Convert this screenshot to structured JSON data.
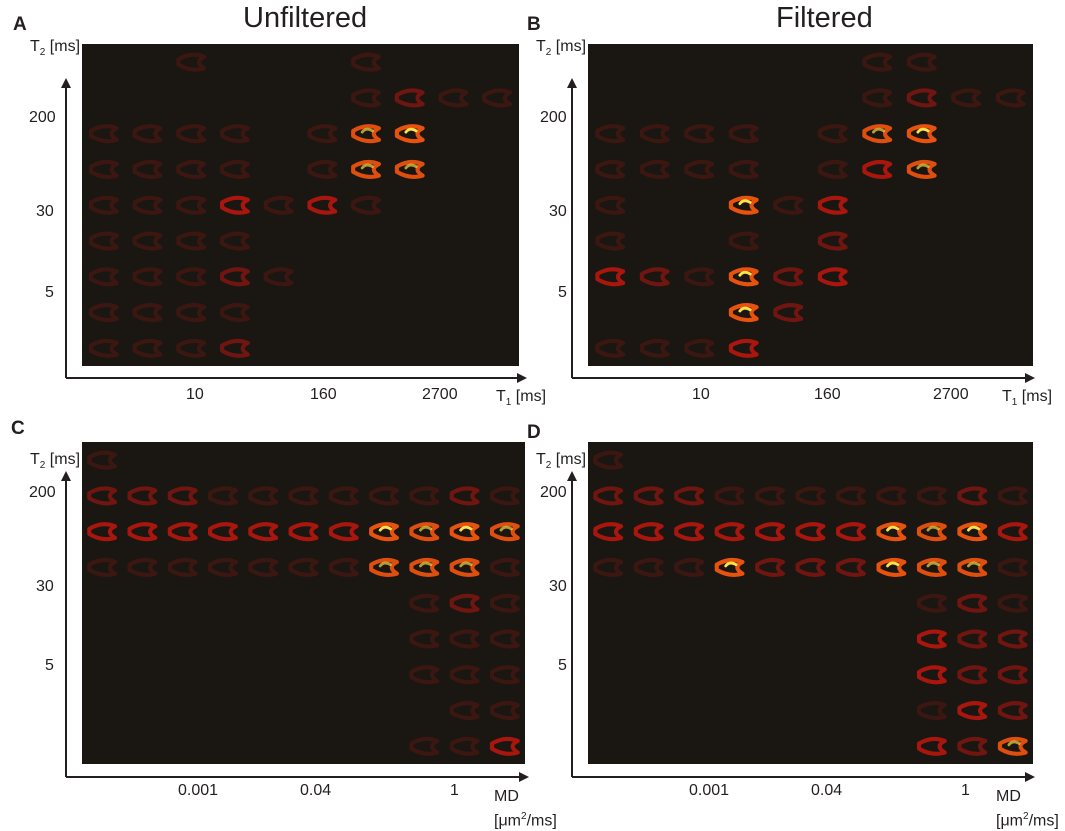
{
  "titles": {
    "left": "Unfiltered",
    "right": "Filtered"
  },
  "panels": {
    "A": {
      "letter": "A",
      "y_label": "T",
      "y_sub": "2",
      "y_unit": " [ms]",
      "x_label": "T",
      "x_sub": "1",
      "x_unit": " [ms]",
      "y_ticks": [
        "200",
        "30",
        "5"
      ],
      "x_ticks": [
        "10",
        "160",
        "2700"
      ]
    },
    "B": {
      "letter": "B",
      "y_label": "T",
      "y_sub": "2",
      "y_unit": " [ms]",
      "x_label": "T",
      "x_sub": "1",
      "x_unit": " [ms]",
      "y_ticks": [
        "200",
        "30",
        "5"
      ],
      "x_ticks": [
        "10",
        "160",
        "2700"
      ]
    },
    "C": {
      "letter": "C",
      "y_label": "T",
      "y_sub": "2",
      "y_unit": " [ms]",
      "x_label": "MD",
      "x_unit_pre": "[μm",
      "x_unit_sup": "2",
      "x_unit_post": "/ms]",
      "y_ticks": [
        "200",
        "30",
        "5"
      ],
      "x_ticks": [
        "0.001",
        "0.04",
        "1"
      ]
    },
    "D": {
      "letter": "D",
      "y_label": "T",
      "y_sub": "2",
      "y_unit": " [ms]",
      "x_label": "MD",
      "x_unit_pre": "[μm",
      "x_unit_sup": "2",
      "x_unit_post": "/ms]",
      "y_ticks": [
        "200",
        "30",
        "5"
      ],
      "x_ticks": [
        "0.001",
        "0.04",
        "1"
      ]
    }
  },
  "colors": {
    "background": "#1a1612",
    "dim": "#5a1a10",
    "red": "#b8160e",
    "orange": "#e8520f",
    "yellow": "#ffe14a",
    "axis": "#231f20"
  },
  "grids": {
    "A": [
      [
        0,
        0,
        1,
        0,
        0,
        0,
        1,
        0,
        0,
        0
      ],
      [
        0,
        0,
        0,
        0,
        0,
        0,
        1,
        2,
        1,
        1
      ],
      [
        1,
        1,
        1,
        1,
        0,
        1,
        4,
        5,
        0,
        0
      ],
      [
        1,
        1,
        1,
        1,
        0,
        1,
        4,
        4,
        0,
        0
      ],
      [
        1,
        1,
        1,
        3,
        1,
        3,
        1,
        0,
        0,
        0
      ],
      [
        1,
        1,
        1,
        1,
        0,
        0,
        0,
        0,
        0,
        0
      ],
      [
        1,
        1,
        1,
        2,
        1,
        0,
        0,
        0,
        0,
        0
      ],
      [
        1,
        1,
        1,
        1,
        0,
        0,
        0,
        0,
        0,
        0
      ],
      [
        1,
        1,
        1,
        2,
        0,
        0,
        0,
        0,
        0,
        0
      ]
    ],
    "B": [
      [
        0,
        0,
        0,
        0,
        0,
        0,
        1,
        1,
        0,
        0
      ],
      [
        0,
        0,
        0,
        0,
        0,
        0,
        1,
        2,
        1,
        1
      ],
      [
        1,
        1,
        1,
        1,
        0,
        1,
        4,
        5,
        0,
        0
      ],
      [
        1,
        1,
        1,
        1,
        0,
        1,
        3,
        4,
        0,
        0
      ],
      [
        1,
        0,
        0,
        5,
        1,
        3,
        0,
        0,
        0,
        0
      ],
      [
        1,
        0,
        0,
        1,
        0,
        2,
        0,
        0,
        0,
        0
      ],
      [
        3,
        2,
        1,
        5,
        2,
        3,
        0,
        0,
        0,
        0
      ],
      [
        0,
        0,
        0,
        5,
        2,
        0,
        0,
        0,
        0,
        0
      ],
      [
        1,
        1,
        1,
        3,
        0,
        0,
        0,
        0,
        0,
        0
      ]
    ],
    "C": [
      [
        1,
        0,
        0,
        0,
        0,
        0,
        0,
        0,
        0,
        0,
        0
      ],
      [
        2,
        2,
        2,
        1,
        1,
        1,
        1,
        1,
        1,
        2,
        1
      ],
      [
        3,
        3,
        3,
        3,
        3,
        3,
        3,
        5,
        4,
        5,
        4
      ],
      [
        1,
        1,
        1,
        1,
        1,
        1,
        1,
        4,
        4,
        4,
        1
      ],
      [
        0,
        0,
        0,
        0,
        0,
        0,
        0,
        0,
        1,
        2,
        1
      ],
      [
        0,
        0,
        0,
        0,
        0,
        0,
        0,
        0,
        1,
        1,
        1
      ],
      [
        0,
        0,
        0,
        0,
        0,
        0,
        0,
        0,
        1,
        1,
        1
      ],
      [
        0,
        0,
        0,
        0,
        0,
        0,
        0,
        0,
        0,
        1,
        1
      ],
      [
        0,
        0,
        0,
        0,
        0,
        0,
        0,
        0,
        1,
        1,
        3
      ]
    ],
    "D": [
      [
        1,
        0,
        0,
        0,
        0,
        0,
        0,
        0,
        0,
        0,
        0
      ],
      [
        2,
        2,
        2,
        1,
        1,
        1,
        1,
        1,
        1,
        2,
        1
      ],
      [
        3,
        3,
        3,
        3,
        3,
        3,
        3,
        5,
        4,
        5,
        3
      ],
      [
        1,
        1,
        1,
        5,
        2,
        2,
        2,
        5,
        4,
        4,
        1
      ],
      [
        0,
        0,
        0,
        0,
        0,
        0,
        0,
        0,
        1,
        2,
        1
      ],
      [
        0,
        0,
        0,
        0,
        0,
        0,
        0,
        0,
        3,
        2,
        2
      ],
      [
        0,
        0,
        0,
        0,
        0,
        0,
        0,
        0,
        3,
        2,
        2
      ],
      [
        0,
        0,
        0,
        0,
        0,
        0,
        0,
        0,
        1,
        3,
        2
      ],
      [
        0,
        0,
        0,
        0,
        0,
        0,
        0,
        0,
        3,
        2,
        4
      ]
    ]
  }
}
